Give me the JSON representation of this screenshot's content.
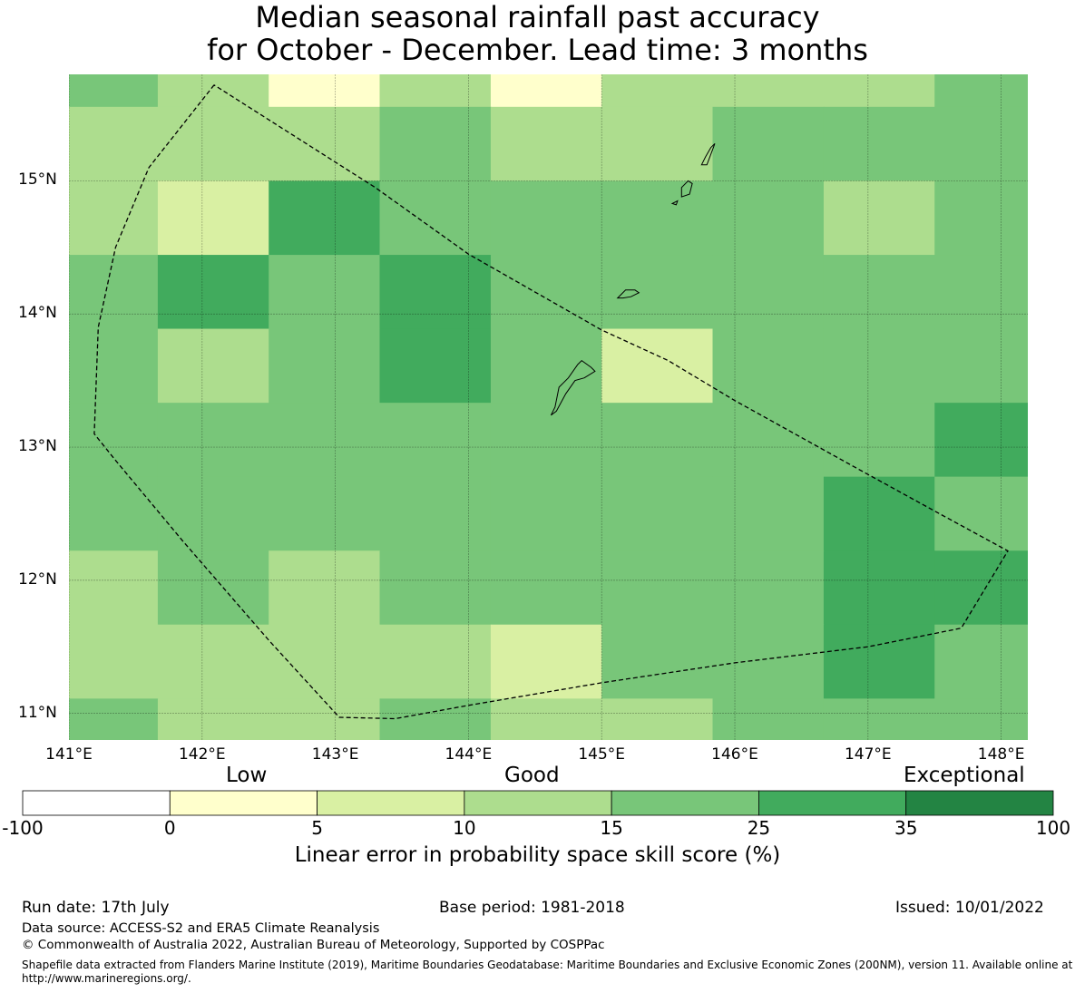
{
  "title": {
    "line1": "Median seasonal rainfall past accuracy",
    "line2": "for October - December. Lead time: 3 months"
  },
  "map": {
    "lon_range": [
      141.0,
      148.2
    ],
    "lat_range": [
      10.8,
      15.8
    ],
    "x_ticks": [
      {
        "value": 141,
        "label": "141°E"
      },
      {
        "value": 142,
        "label": "142°E"
      },
      {
        "value": 143,
        "label": "143°E"
      },
      {
        "value": 144,
        "label": "144°E"
      },
      {
        "value": 145,
        "label": "145°E"
      },
      {
        "value": 146,
        "label": "146°E"
      },
      {
        "value": 147,
        "label": "147°E"
      },
      {
        "value": 148,
        "label": "148°E"
      }
    ],
    "y_ticks": [
      {
        "value": 15,
        "label": "15°N"
      },
      {
        "value": 14,
        "label": "14°N"
      },
      {
        "value": 13,
        "label": "13°N"
      },
      {
        "value": 12,
        "label": "12°N"
      },
      {
        "value": 11,
        "label": "11°N"
      }
    ],
    "cell_lon_edges": [
      141.0,
      141.667,
      142.5,
      143.333,
      144.167,
      145.0,
      145.833,
      146.667,
      147.5,
      148.2
    ],
    "cell_lat_edges": [
      15.8,
      15.556,
      15.0,
      14.444,
      13.889,
      13.333,
      12.778,
      12.222,
      11.667,
      11.111,
      10.8
    ],
    "skill_classes": [
      [
        "c4",
        "c3",
        "c1",
        "c3",
        "c1",
        "c3",
        "c3",
        "c3",
        "c4"
      ],
      [
        "c3",
        "c3",
        "c3",
        "c4",
        "c3",
        "c3",
        "c4",
        "c4",
        "c4"
      ],
      [
        "c3",
        "c2",
        "c5",
        "c4",
        "c4",
        "c4",
        "c4",
        "c3",
        "c4"
      ],
      [
        "c4",
        "c5",
        "c4",
        "c5",
        "c4",
        "c4",
        "c4",
        "c4",
        "c4"
      ],
      [
        "c4",
        "c3",
        "c4",
        "c5",
        "c4",
        "c2",
        "c4",
        "c4",
        "c4"
      ],
      [
        "c4",
        "c4",
        "c4",
        "c4",
        "c4",
        "c4",
        "c4",
        "c4",
        "c5"
      ],
      [
        "c4",
        "c4",
        "c4",
        "c4",
        "c4",
        "c4",
        "c4",
        "c5",
        "c4"
      ],
      [
        "c3",
        "c4",
        "c3",
        "c4",
        "c4",
        "c4",
        "c4",
        "c5",
        "c5"
      ],
      [
        "c3",
        "c3",
        "c3",
        "c3",
        "c2",
        "c4",
        "c4",
        "c5",
        "c4"
      ],
      [
        "c4",
        "c3",
        "c3",
        "c4",
        "c3",
        "c3",
        "c4",
        "c4",
        "c4"
      ]
    ],
    "eez_boundary": [
      [
        142.09,
        15.72
      ],
      [
        141.6,
        15.1
      ],
      [
        141.35,
        14.5
      ],
      [
        141.22,
        13.9
      ],
      [
        141.19,
        13.1
      ],
      [
        141.35,
        12.9
      ],
      [
        141.85,
        12.3
      ],
      [
        142.5,
        11.55
      ],
      [
        143.03,
        10.97
      ],
      [
        143.45,
        10.96
      ],
      [
        144.0,
        11.06
      ],
      [
        145.0,
        11.23
      ],
      [
        146.0,
        11.38
      ],
      [
        147.0,
        11.5
      ],
      [
        147.7,
        11.64
      ],
      [
        148.05,
        12.22
      ],
      [
        147.5,
        12.52
      ],
      [
        146.9,
        12.85
      ],
      [
        146.0,
        13.35
      ],
      [
        145.5,
        13.65
      ],
      [
        145.0,
        13.88
      ],
      [
        144.0,
        14.45
      ],
      [
        143.3,
        14.95
      ],
      [
        142.09,
        15.72
      ]
    ],
    "islands": [
      [
        [
          144.62,
          13.24
        ],
        [
          144.65,
          13.3
        ],
        [
          144.68,
          13.45
        ],
        [
          144.75,
          13.52
        ],
        [
          144.82,
          13.62
        ],
        [
          144.85,
          13.65
        ],
        [
          144.92,
          13.6
        ],
        [
          144.95,
          13.57
        ],
        [
          144.87,
          13.52
        ],
        [
          144.8,
          13.5
        ],
        [
          144.73,
          13.4
        ],
        [
          144.66,
          13.27
        ],
        [
          144.62,
          13.24
        ]
      ],
      [
        [
          145.12,
          14.12
        ],
        [
          145.18,
          14.18
        ],
        [
          145.25,
          14.18
        ],
        [
          145.28,
          14.16
        ],
        [
          145.22,
          14.13
        ],
        [
          145.16,
          14.12
        ],
        [
          145.12,
          14.12
        ]
      ],
      [
        [
          145.6,
          14.88
        ],
        [
          145.6,
          14.95
        ],
        [
          145.65,
          15.0
        ],
        [
          145.68,
          14.98
        ],
        [
          145.66,
          14.9
        ],
        [
          145.6,
          14.88
        ]
      ],
      [
        [
          145.75,
          15.12
        ],
        [
          145.78,
          15.18
        ],
        [
          145.82,
          15.25
        ],
        [
          145.85,
          15.28
        ],
        [
          145.82,
          15.2
        ],
        [
          145.79,
          15.12
        ],
        [
          145.75,
          15.12
        ]
      ],
      [
        [
          145.53,
          14.83
        ],
        [
          145.57,
          14.85
        ],
        [
          145.56,
          14.82
        ],
        [
          145.53,
          14.83
        ]
      ]
    ]
  },
  "colorbar": {
    "words": [
      "Low",
      "Good",
      "Exceptional"
    ],
    "boundaries": [
      "-100",
      "0",
      "5",
      "10",
      "15",
      "25",
      "35",
      "100"
    ],
    "classes": [
      {
        "id": "c0",
        "color": "#ffffff"
      },
      {
        "id": "c1",
        "color": "#ffffcc"
      },
      {
        "id": "c2",
        "color": "#d9f0a3"
      },
      {
        "id": "c3",
        "color": "#addd8e"
      },
      {
        "id": "c4",
        "color": "#78c679"
      },
      {
        "id": "c5",
        "color": "#41ab5d"
      },
      {
        "id": "c6",
        "color": "#238443"
      }
    ],
    "label": "Linear error in probability space skill score (%)"
  },
  "footer": {
    "run_date": "Run date: 17th July",
    "base_period": "Base period: 1981-2018",
    "issued": "Issued: 10/01/2022",
    "data_source": "Data source: ACCESS-S2 and ERA5 Climate Reanalysis",
    "copyright": "© Commonwealth of Australia 2022, Australian Bureau of Meteorology, Supported by COSPPac",
    "shapefile": "Shapefile data extracted from Flanders Marine Institute (2019), Maritime Boundaries Geodatabase: Maritime Boundaries and Exclusive Economic Zones (200NM), version 11. Available online at http://www.marineregions.org/."
  }
}
